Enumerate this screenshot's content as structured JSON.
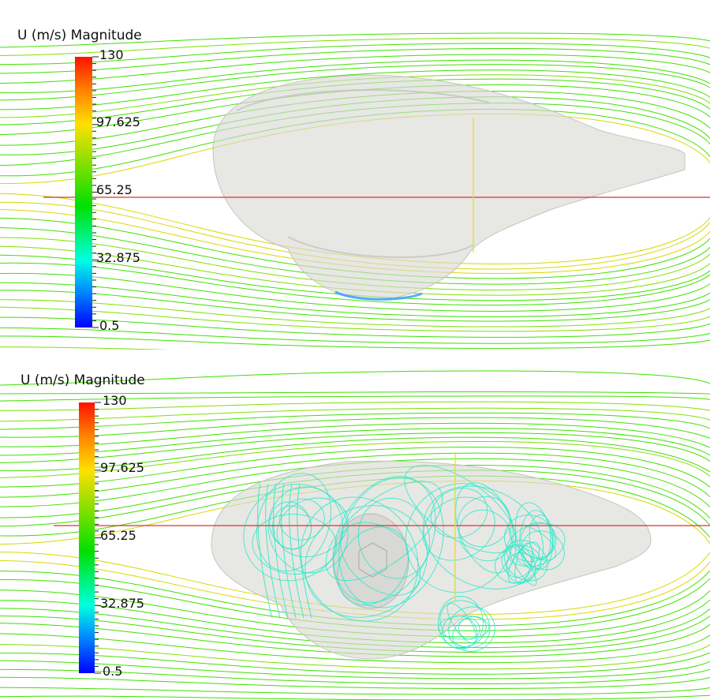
{
  "panels": [
    {
      "id": "top",
      "legend": {
        "title": "U (m/s) Magnitude",
        "ticks": [
          "130",
          "97.625",
          "65.25",
          "32.875",
          "0.5"
        ],
        "min": 0.5,
        "max": 130
      }
    },
    {
      "id": "bottom",
      "legend": {
        "title": "U (m/s) Magnitude",
        "ticks": [
          "130",
          "97.625",
          "65.25",
          "32.875",
          "0.5"
        ],
        "min": 0.5,
        "max": 130
      }
    }
  ],
  "colormap": [
    "#0000ff",
    "#00a0ff",
    "#00ffd8",
    "#00e000",
    "#7fe000",
    "#ffe000",
    "#ff8000",
    "#ff0000"
  ],
  "colors": {
    "streamline_fast": "#3fe000",
    "streamline_mid": "#7ee000",
    "streamline_slow": "#2fe8c8",
    "streamline_yellow": "#d8d800",
    "body_fill": "#d8d8d4",
    "centerline": "#e03030"
  }
}
